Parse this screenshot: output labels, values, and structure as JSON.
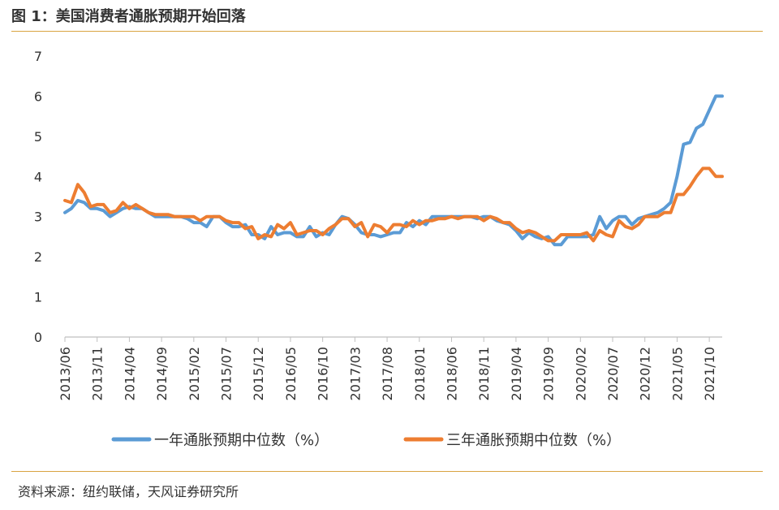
{
  "header": {
    "title": "图 1：美国消费者通胀预期开始回落"
  },
  "footer": {
    "source": "资料来源：纽约联储，天风证券研究所"
  },
  "colors": {
    "series1": "#5b9bd5",
    "series2": "#ed7d31",
    "rule": "#d9a441",
    "axis": "#bfbfbf"
  },
  "chart_data": {
    "type": "line",
    "title": "图 1：美国消费者通胀预期开始回落",
    "xlabel": "",
    "ylabel": "",
    "ylim": [
      0,
      7
    ],
    "yticks": [
      0,
      1,
      2,
      3,
      4,
      5,
      6,
      7
    ],
    "grid": false,
    "legend_position": "bottom",
    "x_tick_labels": [
      "2013/06",
      "2013/11",
      "2014/04",
      "2014/09",
      "2015/02",
      "2015/07",
      "2015/12",
      "2016/05",
      "2016/10",
      "2017/03",
      "2017/08",
      "2018/01",
      "2018/06",
      "2018/11",
      "2019/04",
      "2019/09",
      "2020/02",
      "2020/07",
      "2020/12",
      "2021/05",
      "2021/10"
    ],
    "x": [
      "2013/06",
      "2013/07",
      "2013/08",
      "2013/09",
      "2013/10",
      "2013/11",
      "2013/12",
      "2014/01",
      "2014/02",
      "2014/03",
      "2014/04",
      "2014/05",
      "2014/06",
      "2014/07",
      "2014/08",
      "2014/09",
      "2014/10",
      "2014/11",
      "2014/12",
      "2015/01",
      "2015/02",
      "2015/03",
      "2015/04",
      "2015/05",
      "2015/06",
      "2015/07",
      "2015/08",
      "2015/09",
      "2015/10",
      "2015/11",
      "2015/12",
      "2016/01",
      "2016/02",
      "2016/03",
      "2016/04",
      "2016/05",
      "2016/06",
      "2016/07",
      "2016/08",
      "2016/09",
      "2016/10",
      "2016/11",
      "2016/12",
      "2017/01",
      "2017/02",
      "2017/03",
      "2017/04",
      "2017/05",
      "2017/06",
      "2017/07",
      "2017/08",
      "2017/09",
      "2017/10",
      "2017/11",
      "2017/12",
      "2018/01",
      "2018/02",
      "2018/03",
      "2018/04",
      "2018/05",
      "2018/06",
      "2018/07",
      "2018/08",
      "2018/09",
      "2018/10",
      "2018/11",
      "2018/12",
      "2019/01",
      "2019/02",
      "2019/03",
      "2019/04",
      "2019/05",
      "2019/06",
      "2019/07",
      "2019/08",
      "2019/09",
      "2019/10",
      "2019/11",
      "2019/12",
      "2020/01",
      "2020/02",
      "2020/03",
      "2020/04",
      "2020/05",
      "2020/06",
      "2020/07",
      "2020/08",
      "2020/09",
      "2020/10",
      "2020/11",
      "2020/12",
      "2021/01",
      "2021/02",
      "2021/03",
      "2021/04",
      "2021/05",
      "2021/06",
      "2021/07",
      "2021/08",
      "2021/09",
      "2021/10",
      "2021/11",
      "2021/12"
    ],
    "series": [
      {
        "name": "一年通胀预期中位数（%）",
        "values": [
          3.1,
          3.2,
          3.4,
          3.35,
          3.2,
          3.2,
          3.15,
          3.0,
          3.1,
          3.2,
          3.25,
          3.2,
          3.2,
          3.1,
          3.0,
          3.0,
          3.0,
          3.0,
          3.0,
          2.95,
          2.85,
          2.85,
          2.75,
          3.0,
          3.0,
          2.85,
          2.75,
          2.75,
          2.8,
          2.55,
          2.55,
          2.45,
          2.75,
          2.55,
          2.6,
          2.6,
          2.5,
          2.5,
          2.75,
          2.5,
          2.6,
          2.55,
          2.8,
          3.0,
          2.95,
          2.8,
          2.6,
          2.55,
          2.55,
          2.5,
          2.55,
          2.6,
          2.6,
          2.85,
          2.75,
          2.9,
          2.8,
          3.0,
          3.0,
          3.0,
          3.0,
          3.0,
          3.0,
          3.0,
          2.95,
          3.0,
          3.0,
          2.9,
          2.85,
          2.8,
          2.65,
          2.45,
          2.6,
          2.5,
          2.45,
          2.5,
          2.3,
          2.3,
          2.5,
          2.5,
          2.5,
          2.5,
          2.55,
          3.0,
          2.7,
          2.9,
          3.0,
          3.0,
          2.8,
          2.95,
          3.0,
          3.05,
          3.1,
          3.2,
          3.35,
          4.0,
          4.8,
          4.85,
          5.2,
          5.3,
          5.65,
          6.0,
          6.0
        ]
      },
      {
        "name": "三年通胀预期中位数（%）",
        "values": [
          3.4,
          3.35,
          3.8,
          3.6,
          3.25,
          3.3,
          3.3,
          3.1,
          3.15,
          3.35,
          3.2,
          3.3,
          3.2,
          3.1,
          3.05,
          3.05,
          3.05,
          3.0,
          3.0,
          3.0,
          3.0,
          2.9,
          3.0,
          3.0,
          3.0,
          2.9,
          2.85,
          2.85,
          2.7,
          2.75,
          2.45,
          2.55,
          2.5,
          2.8,
          2.7,
          2.85,
          2.55,
          2.6,
          2.65,
          2.65,
          2.55,
          2.7,
          2.8,
          2.95,
          2.95,
          2.75,
          2.85,
          2.5,
          2.8,
          2.75,
          2.6,
          2.8,
          2.8,
          2.75,
          2.9,
          2.8,
          2.9,
          2.9,
          2.95,
          2.95,
          3.0,
          2.95,
          3.0,
          3.0,
          3.0,
          2.9,
          3.0,
          2.95,
          2.85,
          2.85,
          2.7,
          2.6,
          2.65,
          2.6,
          2.5,
          2.4,
          2.4,
          2.55,
          2.55,
          2.55,
          2.55,
          2.6,
          2.4,
          2.65,
          2.55,
          2.5,
          2.9,
          2.75,
          2.7,
          2.8,
          3.0,
          3.0,
          3.0,
          3.1,
          3.1,
          3.55,
          3.55,
          3.75,
          4.0,
          4.2,
          4.2,
          4.0,
          4.0
        ]
      }
    ]
  }
}
